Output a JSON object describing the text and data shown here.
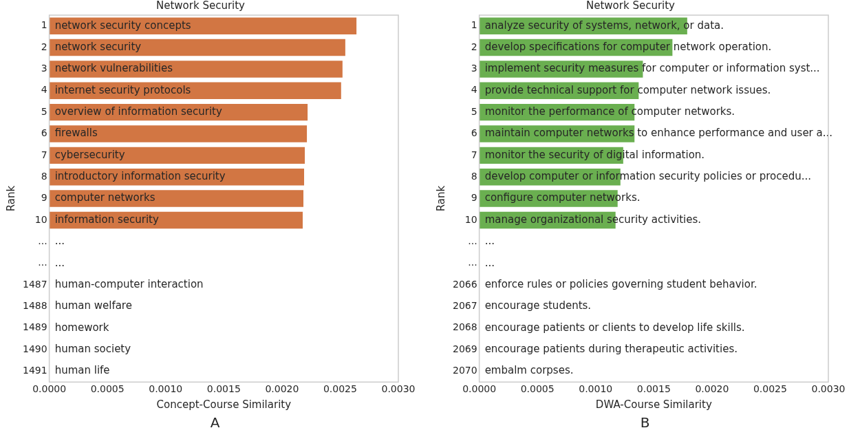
{
  "chart_data": [
    {
      "type": "bar",
      "orientation": "horizontal",
      "title": "Network Security",
      "xlabel": "Concept-Course Similarity",
      "ylabel": "Rank",
      "categories": [
        "1",
        "2",
        "3",
        "4",
        "5",
        "6",
        "7",
        "8",
        "9",
        "10",
        "...",
        "...",
        "1487",
        "1488",
        "1489",
        "1490",
        "1491"
      ],
      "values": [
        0.00264,
        0.002544,
        0.00252,
        0.002508,
        0.00222,
        0.002214,
        0.002196,
        0.00219,
        0.002184,
        0.002178,
        null,
        null,
        null,
        null,
        null,
        null,
        null
      ],
      "value_labels": [
        "network security concepts",
        "network security",
        "network vulnerabilities",
        "internet security protocols",
        "overview of information security",
        "firewalls",
        "cybersecurity",
        "introductory information security",
        "computer networks",
        "information security",
        "...",
        "...",
        "human-computer interaction",
        "human welfare",
        "homework",
        "human society",
        "human life"
      ],
      "color": "#d27643",
      "xlim": [
        0,
        0.003
      ],
      "xticks": [
        {
          "value": 0,
          "label": "0.0000"
        },
        {
          "value": 0.0005,
          "label": "0.0005"
        },
        {
          "value": 0.001,
          "label": "0.0010"
        },
        {
          "value": 0.0015,
          "label": "0.0015"
        },
        {
          "value": 0.002,
          "label": "0.0020"
        },
        {
          "value": 0.0025,
          "label": "0.0025"
        },
        {
          "value": 0.003,
          "label": "0.0030"
        }
      ],
      "grid": false,
      "annotations": [
        "A"
      ]
    },
    {
      "type": "bar",
      "orientation": "horizontal",
      "title": "Network Security",
      "xlabel": "DWA-Course Similarity",
      "ylabel": "Rank",
      "categories": [
        "1",
        "2",
        "3",
        "4",
        "5",
        "6",
        "7",
        "8",
        "9",
        "10",
        "...",
        "...",
        "2066",
        "2067",
        "2068",
        "2069",
        "2070"
      ],
      "values": [
        0.001787,
        0.00166,
        0.001406,
        0.00137,
        0.001334,
        0.001334,
        0.001237,
        0.001213,
        0.001189,
        0.001171,
        null,
        null,
        null,
        null,
        null,
        null,
        null
      ],
      "value_labels": [
        "analyze security of systems, network, or data.",
        "develop specifications for computer network operation.",
        "implement security measures for computer or information syst...",
        "provide technical support for computer network issues.",
        "monitor the performance of computer networks.",
        "maintain computer networks to enhance performance and user a...",
        "monitor the security of digital information.",
        "develop computer or information security policies or procedu...",
        "configure computer networks.",
        "manage organizational security activities.",
        "...",
        "...",
        "enforce rules or policies governing student behavior.",
        "encourage students.",
        "encourage patients or clients to develop life skills.",
        "encourage patients during therapeutic activities.",
        "embalm corpses."
      ],
      "color": "#6aaf50",
      "xlim": [
        0,
        0.003
      ],
      "xticks": [
        {
          "value": 0,
          "label": "0.0000"
        },
        {
          "value": 0.0005,
          "label": "0.0005"
        },
        {
          "value": 0.001,
          "label": "0.0010"
        },
        {
          "value": 0.0015,
          "label": "0.0015"
        },
        {
          "value": 0.002,
          "label": "0.0020"
        },
        {
          "value": 0.0025,
          "label": "0.0025"
        },
        {
          "value": 0.003,
          "label": "0.0030"
        }
      ],
      "grid": false,
      "annotations": [
        "B"
      ]
    }
  ]
}
